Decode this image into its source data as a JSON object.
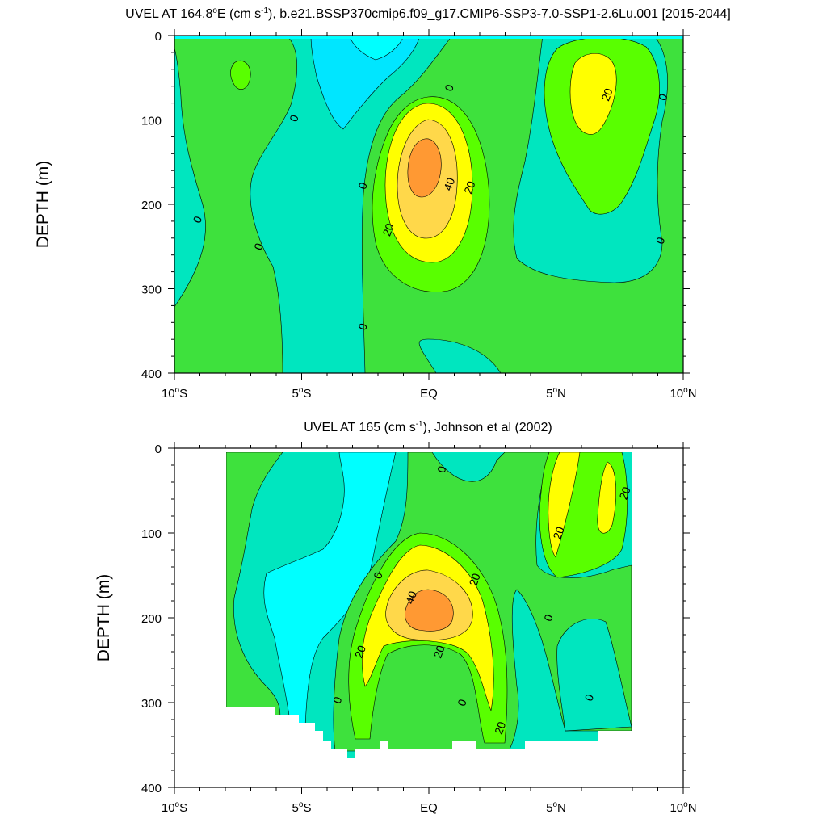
{
  "colors": {
    "lt0": "#00d9c1",
    "c0_10": "#00ffe0",
    "c10_20": "#00f0b0",
    "c0_20": "#3fe000",
    "c20_30": "#ffff00",
    "c30_40": "#ffd700",
    "c40p": "#ffa040",
    "lt_m10": "#00e6ff",
    "cyan": "#00ffff",
    "green1": "#3ee13d",
    "green2": "#59ff00",
    "yellow": "#ffff00",
    "gold": "#ffd84a",
    "orange": "#ff9933",
    "teal": "#00e6bf"
  },
  "chart_data": [
    {
      "type": "contour",
      "title_parts": {
        "pre": "UVEL AT 164.8",
        "deg": "o",
        "mid": "E (cm s",
        "sup": "-1",
        "post": "), b.e21.BSSP370cmip6.f09_g17.CMIP6-SSP3-7.0-SSP1-2.6Lu.001 [2015-2044]"
      },
      "ylabel": "DEPTH (m)",
      "xlim": [
        -10,
        10
      ],
      "ylim": [
        400,
        0
      ],
      "x_ticks": [
        {
          "value": -10,
          "num": "10",
          "deg": "o",
          "hem": "S"
        },
        {
          "value": -5,
          "num": "5",
          "deg": "o",
          "hem": "S"
        },
        {
          "value": 0,
          "num": "EQ",
          "deg": "",
          "hem": ""
        },
        {
          "value": 5,
          "num": "5",
          "deg": "o",
          "hem": "N"
        },
        {
          "value": 10,
          "num": "10",
          "deg": "o",
          "hem": "N"
        }
      ],
      "y_ticks": [
        0,
        100,
        200,
        300,
        400
      ],
      "contour_labels": [
        {
          "text": "0",
          "lat": 0.8,
          "depth": 62
        },
        {
          "text": "0",
          "lat": -5.3,
          "depth": 98
        },
        {
          "text": "0",
          "lat": -9.1,
          "depth": 218
        },
        {
          "text": "0",
          "lat": -6.7,
          "depth": 250
        },
        {
          "text": "0",
          "lat": -2.6,
          "depth": 178
        },
        {
          "text": "0",
          "lat": -2.6,
          "depth": 345
        },
        {
          "text": "0",
          "lat": 9.2,
          "depth": 73
        },
        {
          "text": "0",
          "lat": 9.1,
          "depth": 243
        },
        {
          "text": "20",
          "lat": 7.0,
          "depth": 70
        },
        {
          "text": "20",
          "lat": 1.6,
          "depth": 180
        },
        {
          "text": "40",
          "lat": 0.8,
          "depth": 176
        },
        {
          "text": "20",
          "lat": -1.6,
          "depth": 230
        }
      ]
    },
    {
      "type": "contour",
      "title_parts": {
        "pre": "UVEL AT 165 (cm s",
        "sup": "-1",
        "post": "), Johnson et al (2002)"
      },
      "ylabel": "DEPTH (m)",
      "xlim": [
        -10,
        10
      ],
      "ylim": [
        400,
        0
      ],
      "x_ticks": [
        {
          "value": -10,
          "num": "10",
          "deg": "o",
          "hem": "S"
        },
        {
          "value": -5,
          "num": "5",
          "deg": "o",
          "hem": "S"
        },
        {
          "value": 0,
          "num": "EQ",
          "deg": "",
          "hem": ""
        },
        {
          "value": 5,
          "num": "5",
          "deg": "o",
          "hem": "N"
        },
        {
          "value": 10,
          "num": "10",
          "deg": "o",
          "hem": "N"
        }
      ],
      "y_ticks": [
        0,
        100,
        200,
        300,
        400
      ],
      "contour_labels": [
        {
          "text": "0",
          "lat": 0.5,
          "depth": 25
        },
        {
          "text": "0",
          "lat": -2.0,
          "depth": 150
        },
        {
          "text": "0",
          "lat": 4.7,
          "depth": 200
        },
        {
          "text": "0",
          "lat": -3.6,
          "depth": 297
        },
        {
          "text": "0",
          "lat": 1.3,
          "depth": 300
        },
        {
          "text": "0",
          "lat": 6.3,
          "depth": 294
        },
        {
          "text": "20",
          "lat": 7.7,
          "depth": 53
        },
        {
          "text": "20",
          "lat": 5.1,
          "depth": 100
        },
        {
          "text": "20",
          "lat": 1.8,
          "depth": 155
        },
        {
          "text": "40",
          "lat": -0.7,
          "depth": 176
        },
        {
          "text": "20",
          "lat": -2.7,
          "depth": 240
        },
        {
          "text": "20",
          "lat": 0.4,
          "depth": 240
        },
        {
          "text": "20",
          "lat": 2.8,
          "depth": 330
        }
      ]
    }
  ]
}
